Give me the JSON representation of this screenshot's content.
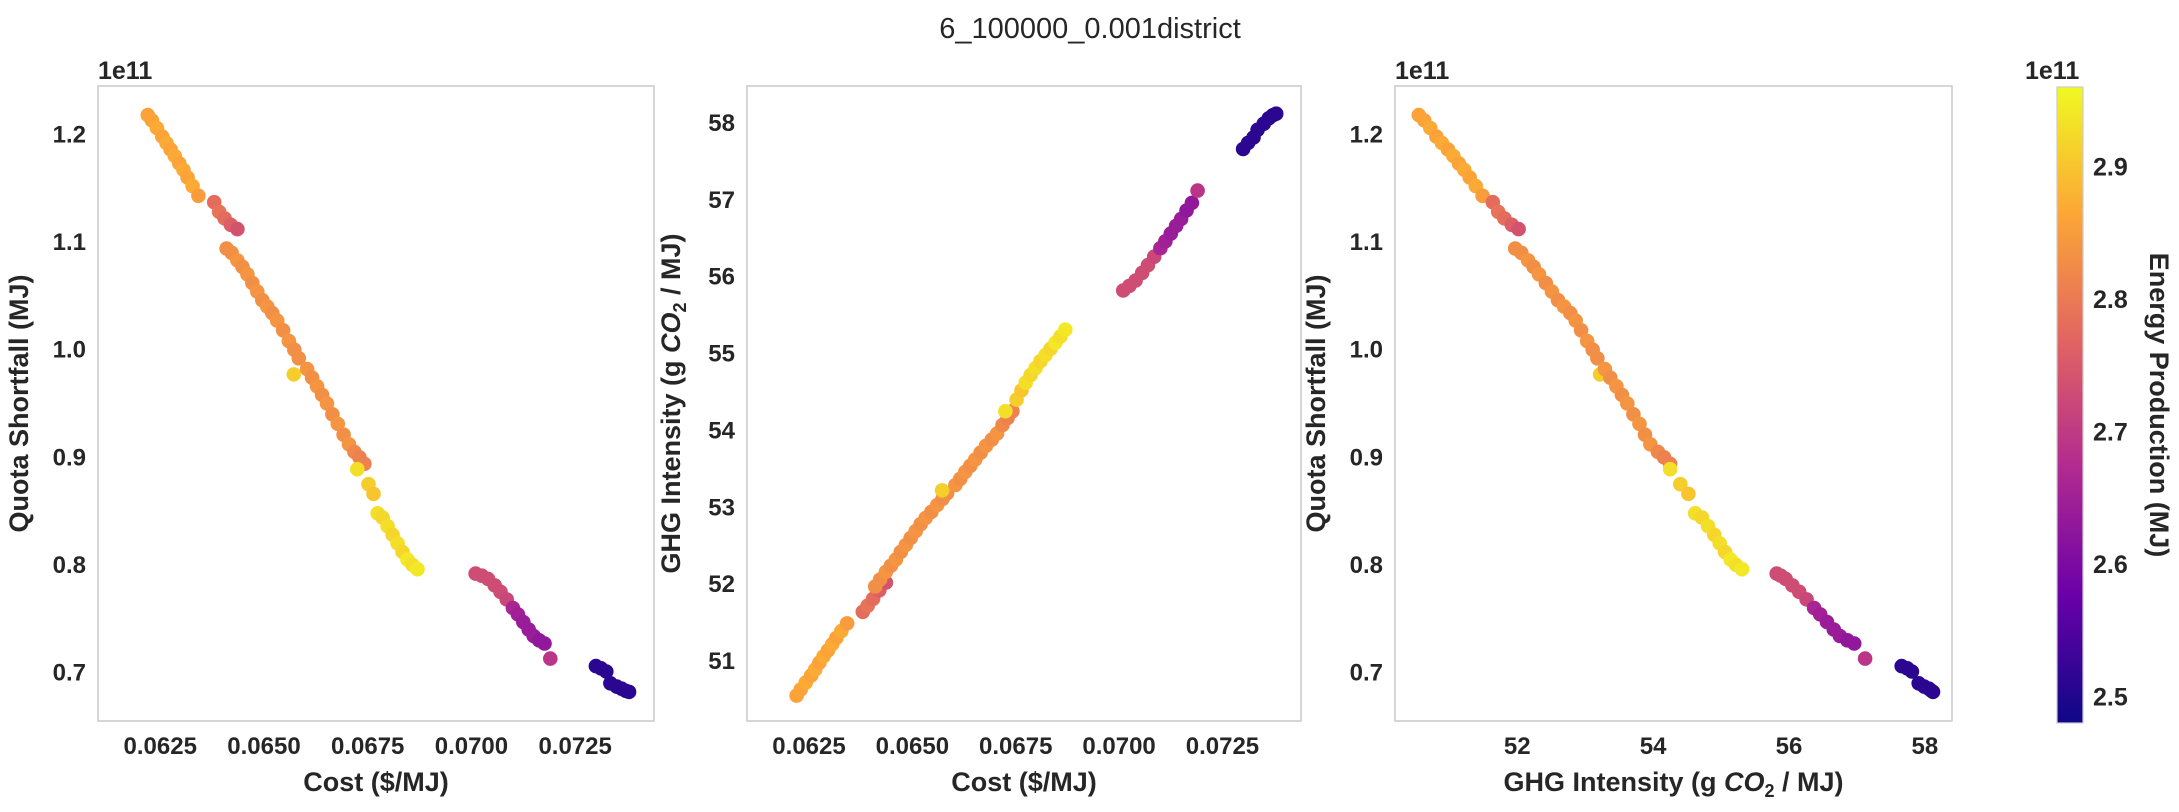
{
  "figure": {
    "title": "6_100000_0.001district"
  },
  "colorbar": {
    "label": "Energy Production (MJ)",
    "offset_text": "1e11",
    "ticks": [
      2.5,
      2.6,
      2.7,
      2.8,
      2.9
    ],
    "tick_labels": [
      "2.5",
      "2.6",
      "2.7",
      "2.8",
      "2.9"
    ],
    "range": [
      2.48,
      2.96
    ],
    "colormap": "plasma",
    "colormap_stops": [
      "#0d0887",
      "#6a00a8",
      "#b12a90",
      "#e16462",
      "#fca636",
      "#f0f921"
    ]
  },
  "chart_data": [
    {
      "type": "scatter",
      "name": "cost-vs-shortfall",
      "xlabel": "Cost ($/MJ)",
      "ylabel": "Quota Shortfall (MJ)",
      "y_offset_text": "1e11",
      "xlim": [
        0.061,
        0.0744
      ],
      "ylim": [
        0.655,
        1.245
      ],
      "xticks": [
        0.0625,
        0.065,
        0.0675,
        0.07,
        0.0725
      ],
      "xtick_labels": [
        "0.0625",
        "0.0650",
        "0.0675",
        "0.0700",
        "0.0725"
      ],
      "yticks": [
        0.7,
        0.8,
        0.9,
        1.0,
        1.1,
        1.2
      ],
      "ytick_labels": [
        "0.7",
        "0.8",
        "0.9",
        "1.0",
        "1.1",
        "1.2"
      ],
      "grid": false
    },
    {
      "type": "scatter",
      "name": "cost-vs-ghg",
      "xlabel": "Cost ($/MJ)",
      "ylabel": "GHG Intensity (g CO2 / MJ)",
      "xlim": [
        0.061,
        0.0744
      ],
      "ylim": [
        50.22,
        58.48
      ],
      "xticks": [
        0.0625,
        0.065,
        0.0675,
        0.07,
        0.0725
      ],
      "xtick_labels": [
        "0.0625",
        "0.0650",
        "0.0675",
        "0.0700",
        "0.0725"
      ],
      "yticks": [
        51,
        52,
        53,
        54,
        55,
        56,
        57,
        58
      ],
      "ytick_labels": [
        "51",
        "52",
        "53",
        "54",
        "55",
        "56",
        "57",
        "58"
      ],
      "grid": false
    },
    {
      "type": "scatter",
      "name": "ghg-vs-shortfall",
      "xlabel": "GHG Intensity (g CO2 / MJ)",
      "ylabel": "Quota Shortfall (MJ)",
      "y_offset_text": "1e11",
      "xlim": [
        50.2,
        58.4
      ],
      "ylim": [
        0.655,
        1.245
      ],
      "xticks": [
        52,
        54,
        56,
        58
      ],
      "xtick_labels": [
        "52",
        "54",
        "56",
        "58"
      ],
      "yticks": [
        0.7,
        0.8,
        0.9,
        1.0,
        1.1,
        1.2
      ],
      "ytick_labels": [
        "0.7",
        "0.8",
        "0.9",
        "1.0",
        "1.1",
        "1.2"
      ],
      "grid": false
    }
  ],
  "points": {
    "fields": [
      "cost",
      "ghg_intensity",
      "quota_shortfall",
      "energy_production"
    ],
    "units": [
      "$/MJ",
      "g CO2 / MJ",
      "1e11 MJ",
      "1e11 MJ"
    ],
    "rows": [
      [
        0.0622,
        50.55,
        1.218,
        2.86
      ],
      [
        0.0623,
        50.63,
        1.213,
        2.86
      ],
      [
        0.06242,
        50.72,
        1.206,
        2.87
      ],
      [
        0.06255,
        50.81,
        1.198,
        2.86
      ],
      [
        0.06265,
        50.89,
        1.192,
        2.87
      ],
      [
        0.06275,
        50.98,
        1.186,
        2.86
      ],
      [
        0.06285,
        51.06,
        1.18,
        2.87
      ],
      [
        0.06296,
        51.14,
        1.173,
        2.86
      ],
      [
        0.06306,
        51.22,
        1.167,
        2.87
      ],
      [
        0.06316,
        51.3,
        1.16,
        2.86
      ],
      [
        0.06328,
        51.39,
        1.152,
        2.87
      ],
      [
        0.06342,
        51.49,
        1.143,
        2.85
      ],
      [
        0.0638,
        51.64,
        1.137,
        2.78
      ],
      [
        0.06392,
        51.72,
        1.128,
        2.79
      ],
      [
        0.06405,
        51.81,
        1.122,
        2.78
      ],
      [
        0.0642,
        51.92,
        1.116,
        2.76
      ],
      [
        0.06436,
        52.02,
        1.112,
        2.74
      ],
      [
        0.0641,
        51.97,
        1.094,
        2.83
      ],
      [
        0.06422,
        52.06,
        1.09,
        2.83
      ],
      [
        0.06436,
        52.16,
        1.083,
        2.84
      ],
      [
        0.06448,
        52.24,
        1.077,
        2.83
      ],
      [
        0.0646,
        52.32,
        1.07,
        2.84
      ],
      [
        0.06472,
        52.42,
        1.062,
        2.83
      ],
      [
        0.06484,
        52.51,
        1.054,
        2.84
      ],
      [
        0.06496,
        52.6,
        1.046,
        2.83
      ],
      [
        0.06508,
        52.69,
        1.04,
        2.84
      ],
      [
        0.0652,
        52.78,
        1.034,
        2.83
      ],
      [
        0.06532,
        52.86,
        1.027,
        2.84
      ],
      [
        0.06546,
        52.94,
        1.018,
        2.83
      ],
      [
        0.0656,
        53.03,
        1.008,
        2.84
      ],
      [
        0.06573,
        53.11,
        1.0,
        2.83
      ],
      [
        0.06584,
        53.18,
        0.992,
        2.83
      ],
      [
        0.06572,
        53.22,
        0.977,
        2.91
      ],
      [
        0.06604,
        53.29,
        0.982,
        2.84
      ],
      [
        0.06616,
        53.37,
        0.974,
        2.83
      ],
      [
        0.06628,
        53.46,
        0.966,
        2.84
      ],
      [
        0.0664,
        53.54,
        0.958,
        2.83
      ],
      [
        0.06652,
        53.62,
        0.95,
        2.84
      ],
      [
        0.06665,
        53.71,
        0.94,
        2.83
      ],
      [
        0.06678,
        53.8,
        0.931,
        2.84
      ],
      [
        0.06692,
        53.88,
        0.921,
        2.83
      ],
      [
        0.06705,
        53.96,
        0.912,
        2.84
      ],
      [
        0.06718,
        54.07,
        0.905,
        2.82
      ],
      [
        0.0673,
        54.16,
        0.9,
        2.81
      ],
      [
        0.06742,
        54.25,
        0.894,
        2.81
      ],
      [
        0.06725,
        54.25,
        0.889,
        2.93
      ],
      [
        0.06752,
        54.4,
        0.875,
        2.91
      ],
      [
        0.06764,
        54.52,
        0.866,
        2.9
      ],
      [
        0.06774,
        54.62,
        0.848,
        2.93
      ],
      [
        0.06786,
        54.72,
        0.844,
        2.92
      ],
      [
        0.06798,
        54.81,
        0.836,
        2.93
      ],
      [
        0.0681,
        54.9,
        0.828,
        2.92
      ],
      [
        0.06822,
        54.98,
        0.82,
        2.93
      ],
      [
        0.06834,
        55.06,
        0.812,
        2.92
      ],
      [
        0.06846,
        55.14,
        0.805,
        2.94
      ],
      [
        0.06858,
        55.22,
        0.8,
        2.93
      ],
      [
        0.0687,
        55.31,
        0.796,
        2.94
      ],
      [
        0.0701,
        55.82,
        0.792,
        2.73
      ],
      [
        0.07025,
        55.88,
        0.79,
        2.73
      ],
      [
        0.0704,
        55.95,
        0.787,
        2.73
      ],
      [
        0.07056,
        56.05,
        0.781,
        2.73
      ],
      [
        0.0707,
        56.15,
        0.775,
        2.73
      ],
      [
        0.07085,
        56.26,
        0.768,
        2.72
      ],
      [
        0.071,
        56.37,
        0.76,
        2.66
      ],
      [
        0.07112,
        56.46,
        0.754,
        2.65
      ],
      [
        0.07125,
        56.56,
        0.747,
        2.64
      ],
      [
        0.07138,
        56.66,
        0.74,
        2.64
      ],
      [
        0.0715,
        56.75,
        0.734,
        2.64
      ],
      [
        0.07163,
        56.86,
        0.73,
        2.63
      ],
      [
        0.07176,
        56.96,
        0.727,
        2.63
      ],
      [
        0.0719,
        57.12,
        0.713,
        2.69
      ],
      [
        0.073,
        57.66,
        0.706,
        2.51
      ],
      [
        0.07312,
        57.74,
        0.704,
        2.51
      ],
      [
        0.07325,
        57.81,
        0.701,
        2.51
      ],
      [
        0.07335,
        57.91,
        0.69,
        2.51
      ],
      [
        0.0735,
        57.99,
        0.687,
        2.51
      ],
      [
        0.07362,
        58.06,
        0.685,
        2.51
      ],
      [
        0.07372,
        58.1,
        0.683,
        2.51
      ],
      [
        0.0738,
        58.12,
        0.682,
        2.51
      ]
    ]
  }
}
